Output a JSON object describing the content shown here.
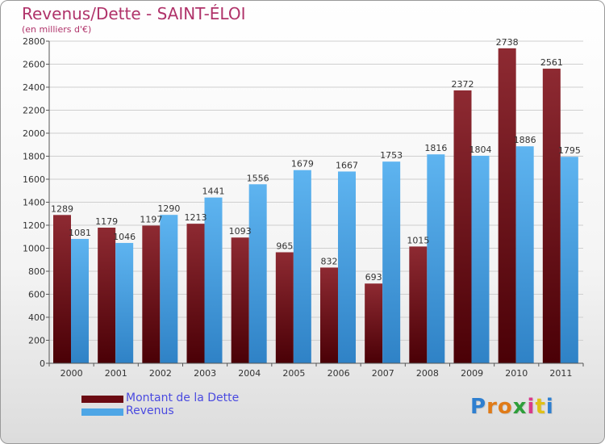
{
  "title": "Revenus/Dette - SAINT-ÉLOI",
  "subtitle": "(en milliers d'€)",
  "logo_text": "Proxiti",
  "colors": {
    "dette": "#6b0a12",
    "revenus": "#4ea6e6",
    "title": "#b0336a",
    "legend_text": "#4a4ae0"
  },
  "chart_data": {
    "type": "bar",
    "categories": [
      "2000",
      "2001",
      "2002",
      "2003",
      "2004",
      "2005",
      "2006",
      "2007",
      "2008",
      "2009",
      "2010",
      "2011"
    ],
    "series": [
      {
        "name": "Montant de la Dette",
        "values": [
          1289,
          1179,
          1197,
          1213,
          1093,
          965,
          832,
          693,
          1015,
          2372,
          2738,
          2561
        ]
      },
      {
        "name": "Revenus",
        "values": [
          1081,
          1046,
          1290,
          1441,
          1556,
          1679,
          1667,
          1753,
          1816,
          1804,
          1886,
          1795
        ]
      }
    ],
    "ylim": [
      0,
      2800
    ],
    "yticks": [
      0,
      200,
      400,
      600,
      800,
      1000,
      1200,
      1400,
      1600,
      1800,
      2000,
      2200,
      2400,
      2600,
      2800
    ],
    "grid": true,
    "legend_position": "bottom-left"
  }
}
